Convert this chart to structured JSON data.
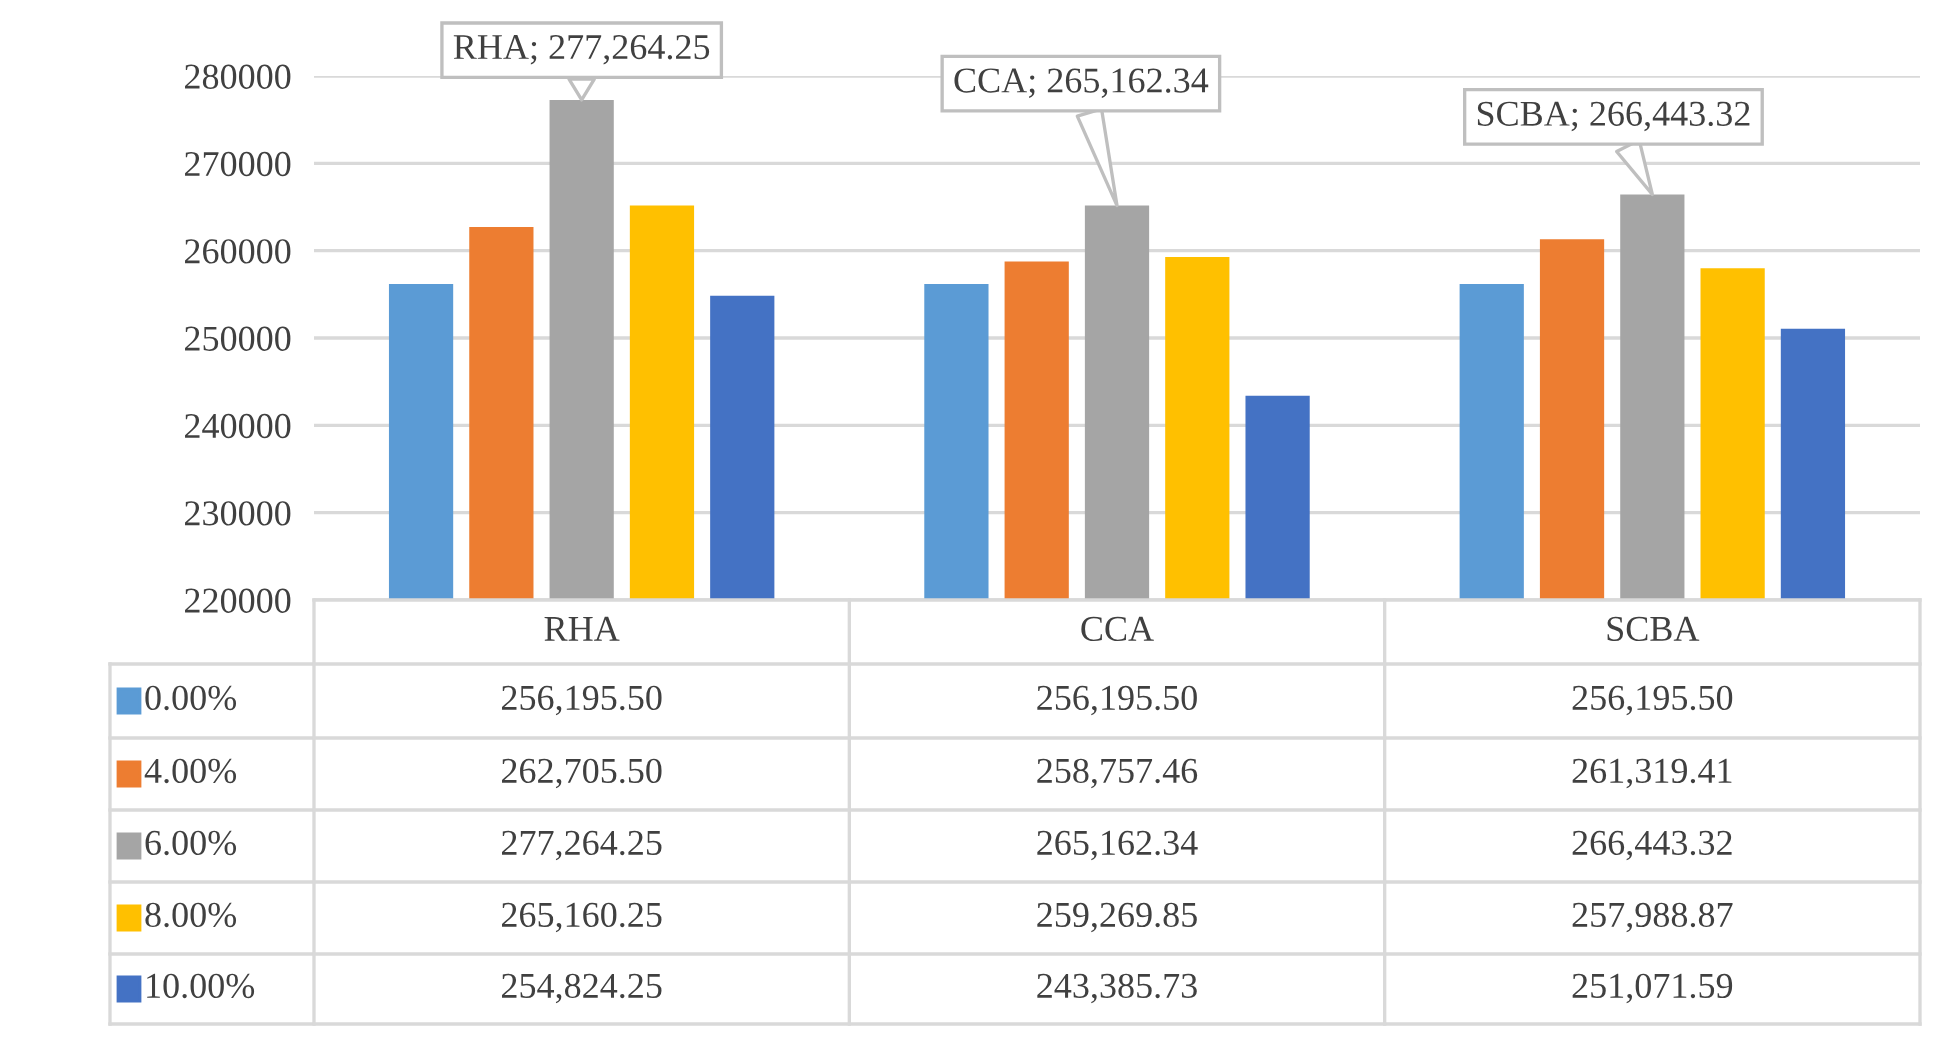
{
  "chart_data": {
    "type": "bar",
    "categories": [
      "RHA",
      "CCA",
      "SCBA"
    ],
    "series": [
      {
        "name": "0.00%",
        "color": "#5b9bd5",
        "values": [
          256195.5,
          256195.5,
          256195.5
        ],
        "value_labels": [
          "256,195.50",
          "256,195.50",
          "256,195.50"
        ]
      },
      {
        "name": "4.00%",
        "color": "#ed7d31",
        "values": [
          262705.5,
          258757.46,
          261319.41
        ],
        "value_labels": [
          "262,705.50",
          "258,757.46",
          "261,319.41"
        ]
      },
      {
        "name": "6.00%",
        "color": "#a5a5a5",
        "values": [
          277264.25,
          265162.34,
          266443.32
        ],
        "value_labels": [
          "277,264.25",
          "265,162.34",
          "266,443.32"
        ]
      },
      {
        "name": "8.00%",
        "color": "#ffc000",
        "values": [
          265160.25,
          259269.85,
          257988.87
        ],
        "value_labels": [
          "265,160.25",
          "259,269.85",
          "257,988.87"
        ]
      },
      {
        "name": "10.00%",
        "color": "#4472c4",
        "values": [
          254824.25,
          243385.73,
          251071.59
        ],
        "value_labels": [
          "254,824.25",
          "243,385.73",
          "251,071.59"
        ]
      }
    ],
    "ylim": [
      220000,
      280000
    ],
    "yticks": [
      220000,
      230000,
      240000,
      250000,
      260000,
      270000,
      280000
    ],
    "grid": "y",
    "legend": "bottom",
    "annotations": [
      {
        "text": "RHA; 277,264.25",
        "x": "RHA",
        "y": 277264.25
      },
      {
        "text": "CCA; 265,162.34",
        "x": "CCA",
        "y": 265162.34
      },
      {
        "text": "SCBA; 266,443.32",
        "x": "SCBA",
        "y": 266443.32
      }
    ]
  }
}
